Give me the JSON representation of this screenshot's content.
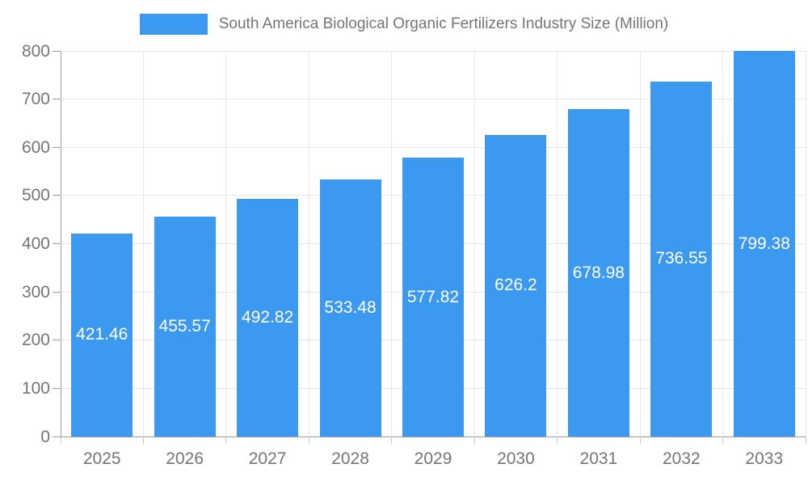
{
  "chart_data": {
    "type": "bar",
    "title": "South America Biological Organic Fertilizers Industry Size (Million)",
    "categories": [
      "2025",
      "2026",
      "2027",
      "2028",
      "2029",
      "2030",
      "2031",
      "2032",
      "2033"
    ],
    "values": [
      421.46,
      455.57,
      492.82,
      533.48,
      577.82,
      626.2,
      678.98,
      736.55,
      799.38
    ],
    "xlabel": "",
    "ylabel": "",
    "ylim": [
      0,
      800
    ],
    "ytick_step": 100,
    "yticks": [
      0,
      100,
      200,
      300,
      400,
      500,
      600,
      700,
      800
    ],
    "grid": true,
    "legend_position": "top-center",
    "value_labels": "inside-center"
  },
  "colors": {
    "bar": "#3C99F0",
    "value_label_text": "#ffffff",
    "axis_text": "#757575",
    "grid_line": "#E6E6E6",
    "axis_line": "#9B9B9B",
    "background": "#ffffff"
  }
}
